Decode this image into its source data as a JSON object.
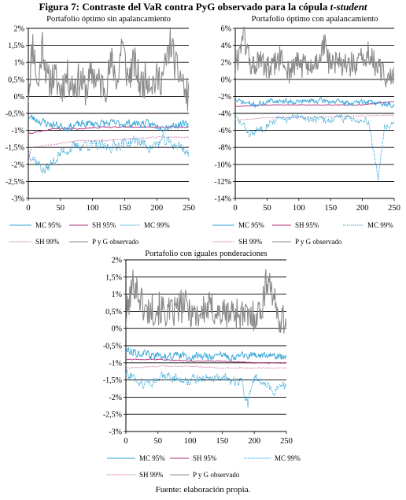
{
  "figure": {
    "title_main": "Figura 7: Contraste del VaR contra PyG observado para la cópula ",
    "title_italic": "t-student",
    "source": "Fuente: elaboración propia."
  },
  "colors": {
    "pyg": "#8a8a8a",
    "mc95": "#2ea3d6",
    "mc99": "#2ea3d6",
    "sh95": "#b02b7a",
    "sh99": "#c44a8e"
  },
  "chart_data": [
    {
      "type": "line",
      "title": "Portafolio óptimo sin apalancamiento",
      "xlim": [
        0,
        250
      ],
      "xticks": [
        0,
        50,
        100,
        150,
        200,
        250
      ],
      "ylim": [
        -3,
        2
      ],
      "yticks": [
        -3,
        -2.5,
        -2,
        -1.5,
        -1,
        -0.5,
        0,
        0.5,
        1,
        1.5,
        2
      ],
      "ytick_labels": [
        "-3%",
        "-2,5%",
        "-2%",
        "-1,5%",
        "-1%",
        "-0,5%",
        "0%",
        "0,5%",
        "1%",
        "1,5%",
        "2%"
      ],
      "grid": true,
      "legend": [
        "MC 95%",
        "SH 95%",
        "MC 99%",
        "SH 99%",
        "P y G observado"
      ],
      "series": [
        {
          "name": "P y G observado",
          "key": "pyg",
          "points": [
            [
              0,
              0.1
            ],
            [
              7,
              1.6
            ],
            [
              15,
              0.2
            ],
            [
              22,
              1.6
            ],
            [
              30,
              0.4
            ],
            [
              40,
              0.6
            ],
            [
              50,
              0.2
            ],
            [
              60,
              0.6
            ],
            [
              70,
              0.3
            ],
            [
              80,
              0.5
            ],
            [
              90,
              0.2
            ],
            [
              100,
              0.7
            ],
            [
              110,
              0.4
            ],
            [
              120,
              0.3
            ],
            [
              130,
              1.0
            ],
            [
              140,
              0.4
            ],
            [
              145,
              1.7
            ],
            [
              155,
              0.5
            ],
            [
              165,
              1.0
            ],
            [
              175,
              0.3
            ],
            [
              185,
              0.6
            ],
            [
              195,
              0.4
            ],
            [
              210,
              0.6
            ],
            [
              222,
              1.6
            ],
            [
              230,
              0.8
            ],
            [
              240,
              0.5
            ],
            [
              245,
              0.0
            ],
            [
              250,
              0.1
            ]
          ],
          "noise": 1.05,
          "seed": 11
        },
        {
          "name": "MC 95%",
          "key": "mc95",
          "points": [
            [
              0,
              -0.6
            ],
            [
              30,
              -0.8
            ],
            [
              60,
              -0.9
            ],
            [
              90,
              -0.8
            ],
            [
              120,
              -0.8
            ],
            [
              150,
              -0.8
            ],
            [
              180,
              -0.8
            ],
            [
              210,
              -0.9
            ],
            [
              240,
              -0.8
            ],
            [
              250,
              -0.9
            ]
          ],
          "noise": 0.35,
          "seed": 23
        },
        {
          "name": "MC 99%",
          "key": "mc99",
          "points": [
            [
              0,
              -1.6
            ],
            [
              25,
              -2.2
            ],
            [
              55,
              -1.6
            ],
            [
              90,
              -1.4
            ],
            [
              120,
              -1.5
            ],
            [
              145,
              -1.4
            ],
            [
              170,
              -1.3
            ],
            [
              190,
              -1.5
            ],
            [
              210,
              -1.3
            ],
            [
              240,
              -1.5
            ],
            [
              250,
              -1.7
            ]
          ],
          "noise": 0.5,
          "seed": 37,
          "dashed": true
        },
        {
          "name": "SH 95%",
          "key": "sh95",
          "points": [
            [
              0,
              -1.1
            ],
            [
              40,
              -0.95
            ],
            [
              80,
              -0.95
            ],
            [
              120,
              -0.9
            ],
            [
              160,
              -0.9
            ],
            [
              200,
              -0.9
            ],
            [
              250,
              -0.9
            ]
          ],
          "noise": 0.05,
          "seed": 41
        },
        {
          "name": "SH 99%",
          "key": "sh99",
          "points": [
            [
              0,
              -1.9
            ],
            [
              5,
              -1.5
            ],
            [
              40,
              -1.4
            ],
            [
              80,
              -1.3
            ],
            [
              120,
              -1.3
            ],
            [
              160,
              -1.25
            ],
            [
              200,
              -1.2
            ],
            [
              250,
              -1.2
            ]
          ],
          "noise": 0.05,
          "seed": 53,
          "dotted": true
        }
      ]
    },
    {
      "type": "line",
      "title": "Portafolio óptimo con apalancamiento",
      "xlim": [
        0,
        250
      ],
      "xticks": [
        0,
        50,
        100,
        150,
        200,
        250
      ],
      "ylim": [
        -14,
        6
      ],
      "yticks": [
        -14,
        -12,
        -10,
        -8,
        -6,
        -4,
        -2,
        0,
        2,
        4,
        6
      ],
      "ytick_labels": [
        "-14%",
        "-12%",
        "-10%",
        "-8%",
        "-6%",
        "-4%",
        "-2%",
        "0%",
        "2%",
        "4%",
        "6%"
      ],
      "grid": true,
      "legend": [
        "MC 95%",
        "SH 95%",
        "MC 99%",
        "SH 99%",
        "P y G observado"
      ],
      "series": [
        {
          "name": "P y G observado",
          "key": "pyg",
          "points": [
            [
              0,
              1.0
            ],
            [
              12,
              5.5
            ],
            [
              25,
              1.5
            ],
            [
              40,
              2.0
            ],
            [
              55,
              1.0
            ],
            [
              70,
              2.5
            ],
            [
              85,
              1.0
            ],
            [
              100,
              2.0
            ],
            [
              120,
              1.0
            ],
            [
              140,
              4.0
            ],
            [
              150,
              1.5
            ],
            [
              170,
              2.0
            ],
            [
              190,
              1.5
            ],
            [
              210,
              3.0
            ],
            [
              225,
              1.0
            ],
            [
              240,
              0.5
            ],
            [
              250,
              0.0
            ]
          ],
          "noise": 3.2,
          "seed": 61
        },
        {
          "name": "MC 95%",
          "key": "mc95",
          "points": [
            [
              0,
              -2.5
            ],
            [
              30,
              -3.0
            ],
            [
              60,
              -2.5
            ],
            [
              100,
              -2.6
            ],
            [
              140,
              -2.5
            ],
            [
              180,
              -2.8
            ],
            [
              210,
              -2.6
            ],
            [
              240,
              -3.0
            ],
            [
              250,
              -3.0
            ]
          ],
          "noise": 0.9,
          "seed": 71
        },
        {
          "name": "MC 99%",
          "key": "mc99",
          "points": [
            [
              0,
              -4.5
            ],
            [
              25,
              -6.5
            ],
            [
              60,
              -4.8
            ],
            [
              100,
              -4.5
            ],
            [
              140,
              -4.8
            ],
            [
              180,
              -4.5
            ],
            [
              210,
              -5.0
            ],
            [
              225,
              -11.5
            ],
            [
              235,
              -5.5
            ],
            [
              250,
              -5.0
            ]
          ],
          "noise": 1.4,
          "seed": 83,
          "dashed": true
        },
        {
          "name": "SH 95%",
          "key": "sh95",
          "points": [
            [
              0,
              -3.2
            ],
            [
              50,
              -3.0
            ],
            [
              100,
              -3.0
            ],
            [
              150,
              -3.0
            ],
            [
              200,
              -3.0
            ],
            [
              250,
              -2.6
            ]
          ],
          "noise": 0.12,
          "seed": 89
        },
        {
          "name": "SH 99%",
          "key": "sh99",
          "points": [
            [
              0,
              -4.8
            ],
            [
              50,
              -4.5
            ],
            [
              100,
              -4.5
            ],
            [
              150,
              -4.4
            ],
            [
              200,
              -4.3
            ],
            [
              250,
              -4.2
            ]
          ],
          "noise": 0.1,
          "seed": 97,
          "dotted": true
        }
      ]
    },
    {
      "type": "line",
      "title": "Portafolio con iguales ponderaciones",
      "xlim": [
        0,
        250
      ],
      "xticks": [
        0,
        50,
        100,
        150,
        200,
        250
      ],
      "ylim": [
        -3,
        2
      ],
      "yticks": [
        -3,
        -2.5,
        -2,
        -1.5,
        -1,
        -0.5,
        0,
        0.5,
        1,
        1.5,
        2
      ],
      "ytick_labels": [
        "-3%",
        "-2,5%",
        "-2%",
        "-1,5%",
        "-1%",
        "-0,5%",
        "0%",
        "0,5%",
        "1%",
        "1,5%",
        "2%"
      ],
      "grid": true,
      "legend": [
        "MC 95%",
        "SH 95%",
        "MC 99%",
        "SH 99%",
        "P y G observado"
      ],
      "series": [
        {
          "name": "P y G observado",
          "key": "pyg",
          "points": [
            [
              0,
              0.3
            ],
            [
              12,
              1.4
            ],
            [
              30,
              0.5
            ],
            [
              50,
              0.6
            ],
            [
              70,
              0.4
            ],
            [
              90,
              0.7
            ],
            [
              110,
              0.4
            ],
            [
              130,
              0.6
            ],
            [
              150,
              0.4
            ],
            [
              170,
              0.5
            ],
            [
              190,
              0.3
            ],
            [
              210,
              0.5
            ],
            [
              222,
              1.6
            ],
            [
              235,
              0.4
            ],
            [
              250,
              0.2
            ]
          ],
          "noise": 1.0,
          "seed": 101
        },
        {
          "name": "MC 95%",
          "key": "mc95",
          "points": [
            [
              0,
              -0.6
            ],
            [
              40,
              -0.8
            ],
            [
              80,
              -0.8
            ],
            [
              120,
              -0.8
            ],
            [
              160,
              -0.8
            ],
            [
              200,
              -0.8
            ],
            [
              250,
              -0.8
            ]
          ],
          "noise": 0.35,
          "seed": 113
        },
        {
          "name": "MC 99%",
          "key": "mc99",
          "points": [
            [
              0,
              -1.3
            ],
            [
              30,
              -1.6
            ],
            [
              60,
              -1.4
            ],
            [
              100,
              -1.5
            ],
            [
              140,
              -1.4
            ],
            [
              180,
              -1.6
            ],
            [
              190,
              -2.2
            ],
            [
              200,
              -1.4
            ],
            [
              230,
              -1.8
            ],
            [
              250,
              -1.6
            ]
          ],
          "noise": 0.45,
          "seed": 127,
          "dashed": true
        },
        {
          "name": "SH 95%",
          "key": "sh95",
          "points": [
            [
              0,
              -0.9
            ],
            [
              50,
              -0.9
            ],
            [
              100,
              -0.95
            ],
            [
              150,
              -0.95
            ],
            [
              200,
              -1.0
            ],
            [
              250,
              -1.0
            ]
          ],
          "noise": 0.04,
          "seed": 131
        },
        {
          "name": "SH 99%",
          "key": "sh99",
          "points": [
            [
              0,
              -1.15
            ],
            [
              50,
              -1.1
            ],
            [
              100,
              -1.1
            ],
            [
              150,
              -1.15
            ],
            [
              200,
              -1.15
            ],
            [
              250,
              -1.15
            ]
          ],
          "noise": 0.04,
          "seed": 137,
          "dotted": true
        }
      ]
    }
  ]
}
